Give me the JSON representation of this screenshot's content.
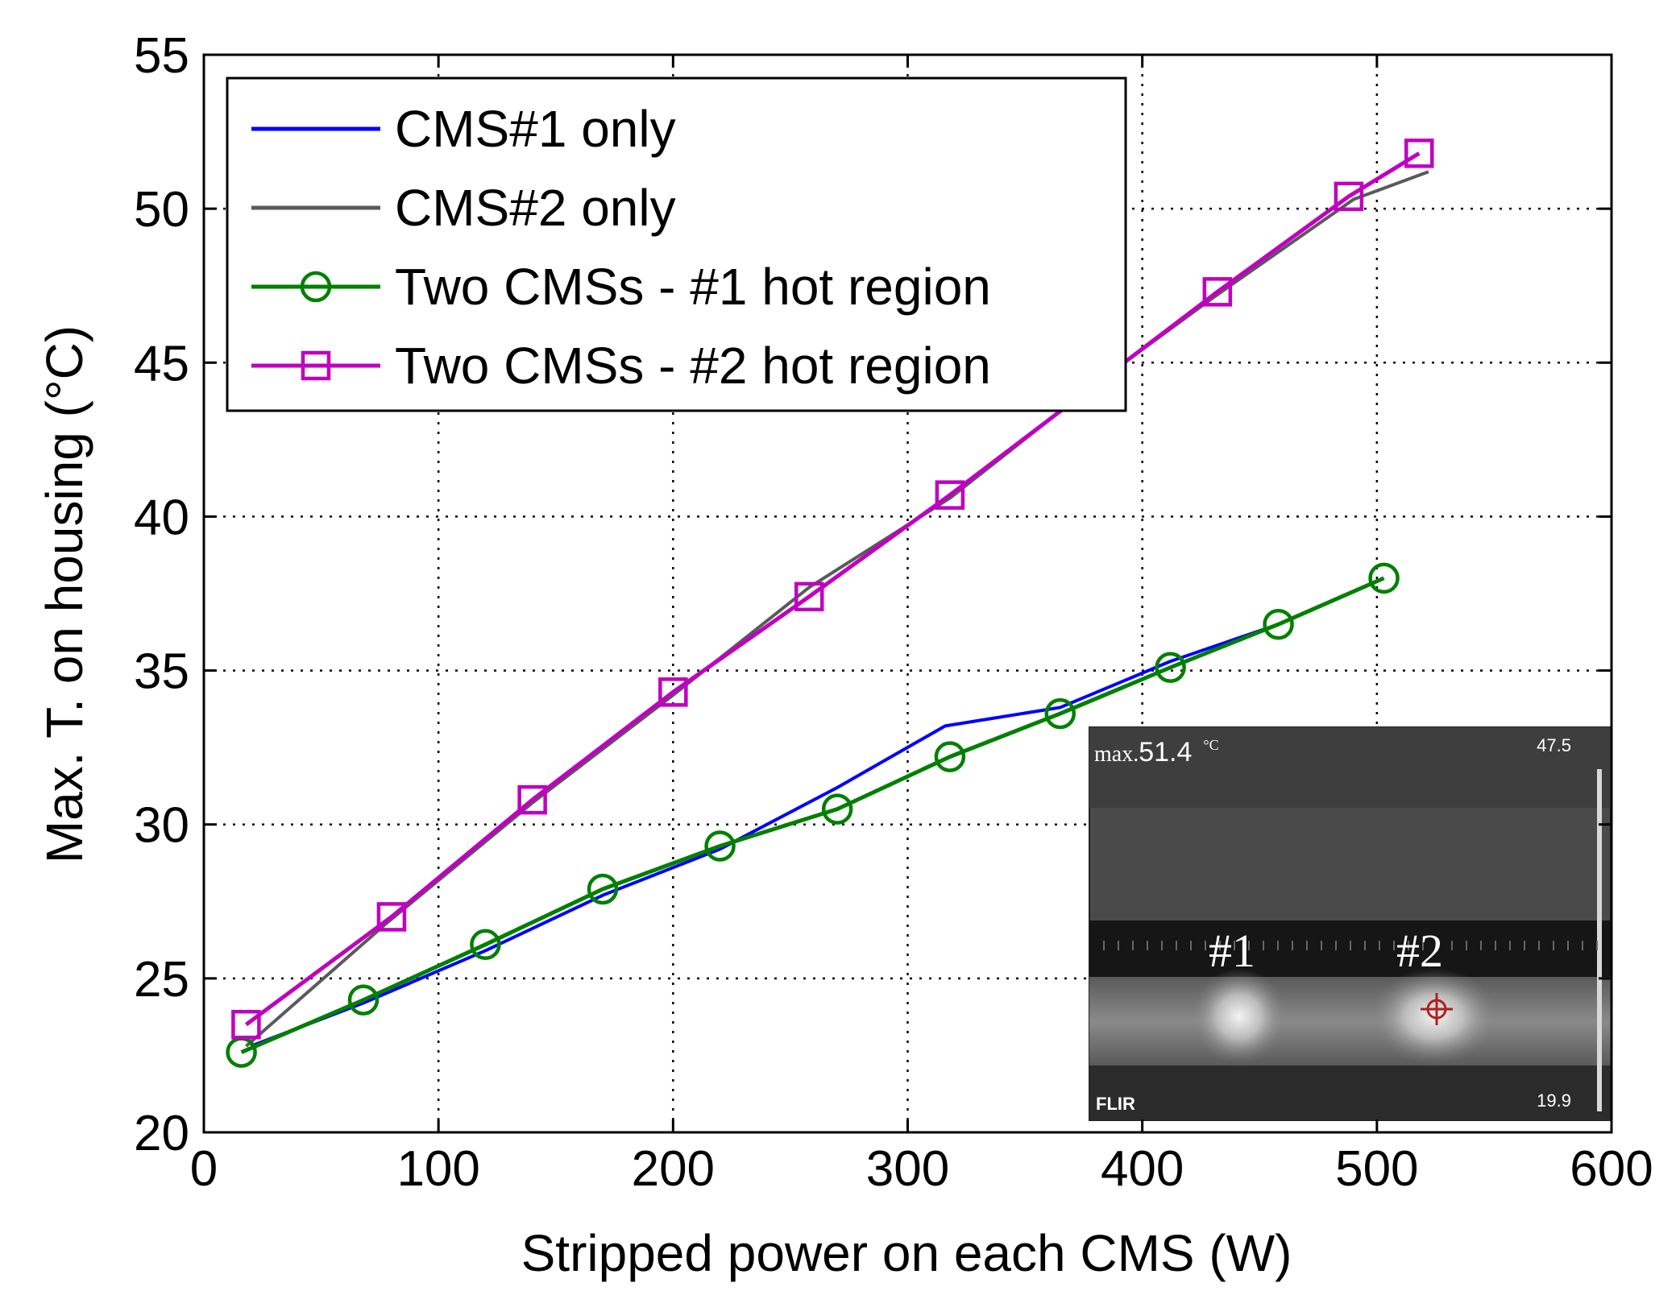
{
  "chart_data": {
    "type": "line",
    "xlabel": "Stripped power on each CMS (W)",
    "ylabel": "Max. T. on housing (°C)",
    "xlim": [
      0,
      600
    ],
    "ylim": [
      20,
      55
    ],
    "xticks": [
      0,
      100,
      200,
      300,
      400,
      500,
      600
    ],
    "yticks": [
      20,
      25,
      30,
      35,
      40,
      45,
      50,
      55
    ],
    "grid": true,
    "legend_position": "top-left",
    "series": [
      {
        "name": "CMS#1 only",
        "color": "#0000ff",
        "marker": "none",
        "x": [
          20,
          68,
          120,
          170,
          220,
          270,
          316,
          365,
          412,
          458
        ],
        "y": [
          22.8,
          24.2,
          25.9,
          27.7,
          29.2,
          31.2,
          33.2,
          33.8,
          35.3,
          36.5
        ]
      },
      {
        "name": "CMS#2 only",
        "color": "#5a5a5a",
        "marker": "none",
        "x": [
          18,
          78,
          140,
          200,
          258,
          318,
          378,
          430,
          490,
          522
        ],
        "y": [
          22.8,
          26.8,
          30.7,
          34.2,
          37.7,
          40.6,
          44.2,
          47.1,
          50.3,
          51.2
        ]
      },
      {
        "name": "Two CMSs - #1 hot region",
        "color": "#008000",
        "marker": "circle",
        "x": [
          16,
          68,
          120,
          170,
          220,
          270,
          318,
          365,
          412,
          458,
          503
        ],
        "y": [
          22.6,
          24.3,
          26.1,
          27.9,
          29.3,
          30.5,
          32.2,
          33.6,
          35.1,
          36.5,
          38.0
        ]
      },
      {
        "name": "Two CMSs - #2 hot region",
        "color": "#c000c0",
        "marker": "square",
        "x": [
          18,
          80,
          140,
          200,
          258,
          318,
          432,
          488,
          518
        ],
        "y": [
          23.5,
          27.0,
          30.8,
          34.3,
          37.4,
          40.7,
          47.3,
          50.4,
          51.8
        ]
      }
    ]
  },
  "inset": {
    "max_prefix": "max.",
    "max_value": "51.4",
    "unit": "°C",
    "scale_top": "47.5",
    "scale_bottom": "19.9",
    "brand": "FLIR",
    "label_1": "#1",
    "label_2": "#2",
    "background_color": "#4a4a4a",
    "ruler_color": "#161616",
    "glow_color": "#f2f2f2",
    "crosshair_color": "#b02020"
  }
}
